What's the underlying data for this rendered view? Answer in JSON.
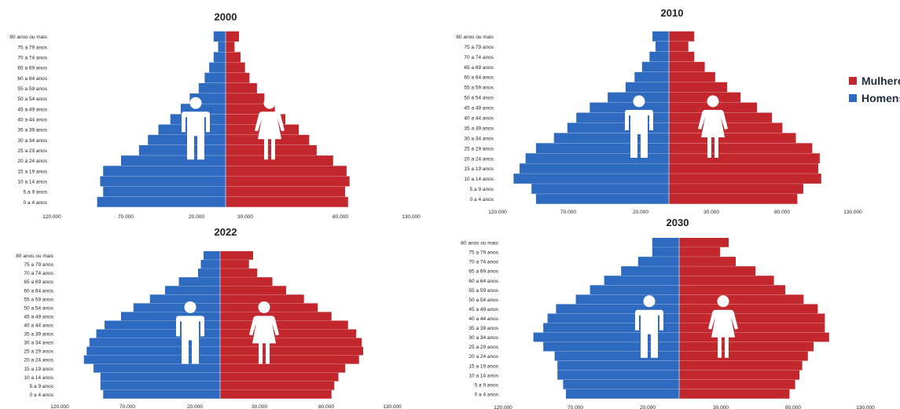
{
  "colors": {
    "women": "#c1272d",
    "men": "#2e6bc0",
    "divider": "#a9c6e8",
    "text": "#222222"
  },
  "legend": {
    "women_label": "Mulheres",
    "men_label": "Homens"
  },
  "chart_data": [
    {
      "type": "bar",
      "title": "2000",
      "categories": [
        "80 anos ou mais",
        "75 a 79 anos",
        "70 a 74 anos",
        "65 a 69 anos",
        "60 a 64 anos",
        "55 a 59 anos",
        "50 a 54 anos",
        "45 a 49 anos",
        "40 a 44 anos",
        "35 a 39 anos",
        "30 a 34 anos",
        "25 a 29 anos",
        "20 a 24 anos",
        "15 a 19 anos",
        "10 a 14 anos",
        "5 a 9 anos",
        "0 a 4 anos"
      ],
      "series": [
        {
          "name": "Homens",
          "values": [
            8000,
            5000,
            8000,
            11000,
            14000,
            18000,
            24000,
            30000,
            37000,
            45000,
            52000,
            58000,
            70000,
            82000,
            84000,
            82000,
            86000
          ]
        },
        {
          "name": "Mulheres",
          "values": [
            9000,
            6000,
            10000,
            13000,
            16000,
            21000,
            26000,
            33000,
            40000,
            49000,
            56000,
            61000,
            72000,
            81000,
            83000,
            80000,
            82000
          ]
        }
      ],
      "x_tick_labels": [
        "120.000",
        "70.000",
        "20.000",
        "30.000",
        "80.000",
        "130.000"
      ]
    },
    {
      "type": "bar",
      "title": "2010",
      "categories": [
        "80 anos ou mais",
        "75 a 79 anos",
        "70 a 74 anos",
        "65 a 69 anos",
        "60 a 64 anos",
        "55 a 59 anos",
        "50 a 54 anos",
        "45 a 49 anos",
        "40 a 44 anos",
        "35 a 39 anos",
        "30 a 34 anos",
        "25 a 29 anos",
        "20 a 24 anos",
        "15 a 19 anos",
        "10 a 14 anos",
        "5 a 9 anos",
        "0 a 4 anos"
      ],
      "series": [
        {
          "name": "Homens",
          "values": [
            11000,
            9000,
            13000,
            18000,
            23000,
            29000,
            41000,
            53000,
            62000,
            68000,
            77000,
            89000,
            96000,
            100000,
            104000,
            92000,
            89000
          ]
        },
        {
          "name": "Mulheres",
          "values": [
            17000,
            13000,
            17000,
            24000,
            31000,
            39000,
            48000,
            59000,
            69000,
            76000,
            85000,
            96000,
            101000,
            100000,
            102000,
            90000,
            86000
          ]
        }
      ],
      "x_tick_labels": [
        "120.000",
        "70.000",
        "20.000",
        "30.000",
        "80.000",
        "130.000"
      ]
    },
    {
      "type": "bar",
      "title": "2022",
      "categories": [
        "80 anos ou mais",
        "75 a 79 anos",
        "70 a 74 anos",
        "65 a 69 anos",
        "60 a 64 anos",
        "55 a 59 anos",
        "50 a 54 anos",
        "45 a 49 anos",
        "40 a 44 anos",
        "35 a 39 anos",
        "30 a 34 anos",
        "25 a 29 anos",
        "20 a 24 anos",
        "15 a 19 anos",
        "10 a 14 anos",
        "5 a 9 anos",
        "0 a 4 anos"
      ],
      "series": [
        {
          "name": "Homens",
          "values": [
            12000,
            14000,
            16000,
            30000,
            40000,
            51000,
            63000,
            72000,
            84000,
            90000,
            95000,
            97000,
            99000,
            92000,
            87000,
            87000,
            85000
          ]
        },
        {
          "name": "Mulheres",
          "values": [
            24000,
            21000,
            27000,
            38000,
            48000,
            61000,
            71000,
            81000,
            93000,
            99000,
            103000,
            104000,
            101000,
            91000,
            86000,
            83000,
            81000
          ]
        }
      ],
      "x_tick_labels": [
        "120.000",
        "70.000",
        "20.000",
        "30.000",
        "80.000",
        "130.000"
      ]
    },
    {
      "type": "bar",
      "title": "2030",
      "categories": [
        "80 anos ou mais",
        "75 a 79 anos",
        "70 a 74 anos",
        "65 a 69 anos",
        "60 a 64 anos",
        "55 a 59 anos",
        "50 a 54 anos",
        "45 a 49 anos",
        "40 a 44 anos",
        "35 a 39 anos",
        "30 a 34 anos",
        "25 a 29 anos",
        "20 a 24 anos",
        "15 a 19 anos",
        "10 a 14 anos",
        "5 a 9 anos",
        "0 a 4 anos"
      ],
      "series": [
        {
          "name": "Homens",
          "values": [
            19000,
            19000,
            29000,
            41000,
            53000,
            63000,
            73000,
            87000,
            93000,
            96000,
            103000,
            96000,
            88000,
            86000,
            86000,
            82000,
            80000
          ]
        },
        {
          "name": "Mulheres",
          "values": [
            35000,
            29000,
            40000,
            54000,
            67000,
            75000,
            88000,
            98000,
            103000,
            103000,
            106000,
            95000,
            91000,
            87000,
            85000,
            82000,
            78000
          ]
        }
      ],
      "x_tick_labels": [
        "120.000",
        "70.000",
        "20.000",
        "30.000",
        "80.000",
        "130.000"
      ]
    }
  ]
}
